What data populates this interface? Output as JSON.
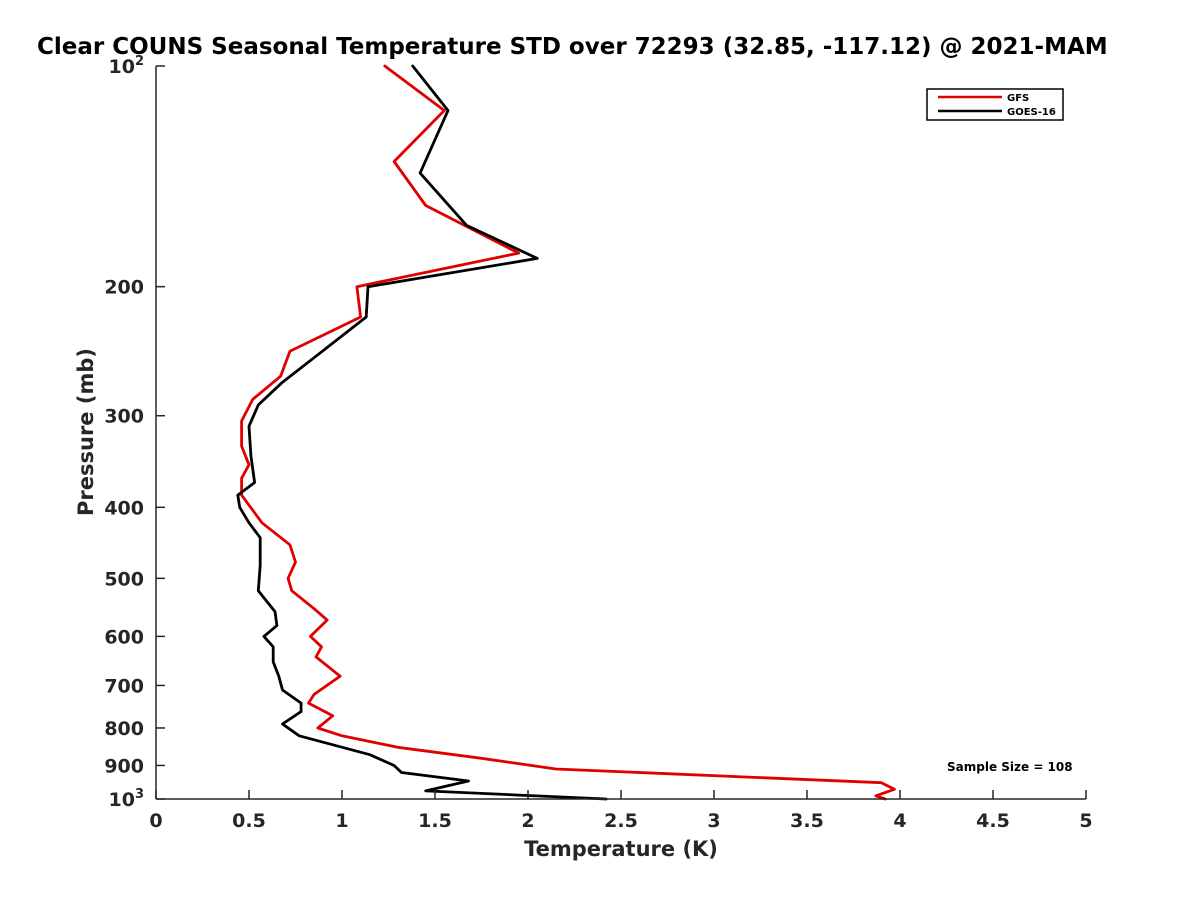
{
  "chart_data": {
    "type": "line",
    "title": "Clear COUNS Seasonal Temperature STD over 72293 (32.85, -117.12) @ 2021-MAM",
    "xlabel": "Temperature (K)",
    "ylabel": "Pressure (mb)",
    "xlim": [
      0,
      5
    ],
    "ylim": [
      100,
      1000
    ],
    "y_scale": "log",
    "y_reversed": true,
    "grid": false,
    "legend_position": "top-right",
    "x_ticks": [
      {
        "value": 0,
        "label": "0"
      },
      {
        "value": 0.5,
        "label": "0.5"
      },
      {
        "value": 1,
        "label": "1"
      },
      {
        "value": 1.5,
        "label": "1.5"
      },
      {
        "value": 2,
        "label": "2"
      },
      {
        "value": 2.5,
        "label": "2.5"
      },
      {
        "value": 3,
        "label": "3"
      },
      {
        "value": 3.5,
        "label": "3.5"
      },
      {
        "value": 4,
        "label": "4"
      },
      {
        "value": 4.5,
        "label": "4.5"
      },
      {
        "value": 5,
        "label": "5"
      }
    ],
    "y_ticks": [
      {
        "value": 100,
        "base": "10",
        "exp": "2"
      },
      {
        "value": 200,
        "label": "200"
      },
      {
        "value": 300,
        "label": "300"
      },
      {
        "value": 400,
        "label": "400"
      },
      {
        "value": 500,
        "label": "500"
      },
      {
        "value": 600,
        "label": "600"
      },
      {
        "value": 700,
        "label": "700"
      },
      {
        "value": 800,
        "label": "800"
      },
      {
        "value": 900,
        "label": "900"
      },
      {
        "value": 1000,
        "base": "10",
        "exp": "3"
      }
    ],
    "series": [
      {
        "name": "GFS",
        "color": "#e00000",
        "points": [
          [
            1.23,
            100
          ],
          [
            1.55,
            115
          ],
          [
            1.28,
            135
          ],
          [
            1.45,
            155
          ],
          [
            1.95,
            180
          ],
          [
            1.08,
            200
          ],
          [
            1.1,
            220
          ],
          [
            0.72,
            245
          ],
          [
            0.67,
            265
          ],
          [
            0.52,
            285
          ],
          [
            0.46,
            305
          ],
          [
            0.46,
            330
          ],
          [
            0.5,
            350
          ],
          [
            0.46,
            365
          ],
          [
            0.46,
            385
          ],
          [
            0.57,
            420
          ],
          [
            0.72,
            450
          ],
          [
            0.75,
            475
          ],
          [
            0.71,
            500
          ],
          [
            0.73,
            520
          ],
          [
            0.85,
            550
          ],
          [
            0.92,
            570
          ],
          [
            0.83,
            600
          ],
          [
            0.89,
            620
          ],
          [
            0.86,
            640
          ],
          [
            0.99,
            680
          ],
          [
            0.85,
            720
          ],
          [
            0.82,
            740
          ],
          [
            0.95,
            770
          ],
          [
            0.87,
            800
          ],
          [
            1.0,
            820
          ],
          [
            1.3,
            850
          ],
          [
            1.75,
            880
          ],
          [
            2.15,
            910
          ],
          [
            3.9,
            950
          ],
          [
            3.97,
            970
          ],
          [
            3.87,
            990
          ],
          [
            3.92,
            1000
          ]
        ]
      },
      {
        "name": "GOES-16",
        "color": "#000000",
        "points": [
          [
            1.38,
            100
          ],
          [
            1.57,
            115
          ],
          [
            1.42,
            140
          ],
          [
            1.67,
            165
          ],
          [
            2.05,
            183
          ],
          [
            1.14,
            200
          ],
          [
            1.13,
            220
          ],
          [
            0.85,
            250
          ],
          [
            0.68,
            270
          ],
          [
            0.55,
            290
          ],
          [
            0.5,
            310
          ],
          [
            0.51,
            340
          ],
          [
            0.53,
            370
          ],
          [
            0.44,
            385
          ],
          [
            0.45,
            400
          ],
          [
            0.5,
            420
          ],
          [
            0.56,
            440
          ],
          [
            0.56,
            480
          ],
          [
            0.55,
            520
          ],
          [
            0.64,
            555
          ],
          [
            0.65,
            580
          ],
          [
            0.58,
            600
          ],
          [
            0.63,
            620
          ],
          [
            0.63,
            650
          ],
          [
            0.66,
            680
          ],
          [
            0.68,
            710
          ],
          [
            0.78,
            740
          ],
          [
            0.78,
            760
          ],
          [
            0.68,
            790
          ],
          [
            0.77,
            820
          ],
          [
            1.15,
            870
          ],
          [
            1.28,
            900
          ],
          [
            1.32,
            920
          ],
          [
            1.68,
            945
          ],
          [
            1.45,
            975
          ],
          [
            2.42,
            1000
          ]
        ]
      }
    ],
    "annotations": [
      {
        "text": "Sample Size = 108"
      }
    ]
  }
}
